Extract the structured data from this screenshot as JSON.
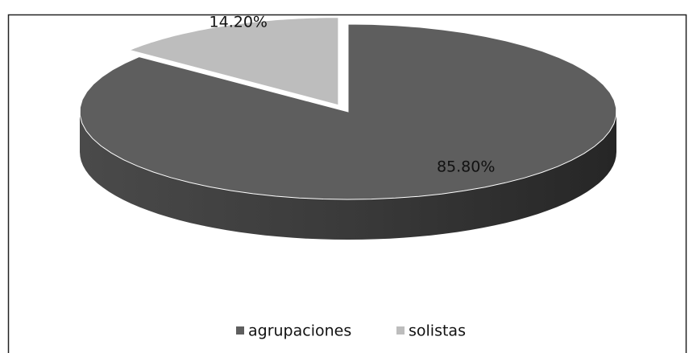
{
  "chart_data": {
    "type": "pie",
    "categories": [
      "agrupaciones",
      "solistas"
    ],
    "values": [
      85.8,
      14.2
    ],
    "value_labels": [
      "85.80%",
      "14.20%"
    ],
    "colors": [
      "#5e5e5e",
      "#bdbdbd"
    ],
    "exploded": [
      false,
      true
    ],
    "legend": "bottom"
  }
}
